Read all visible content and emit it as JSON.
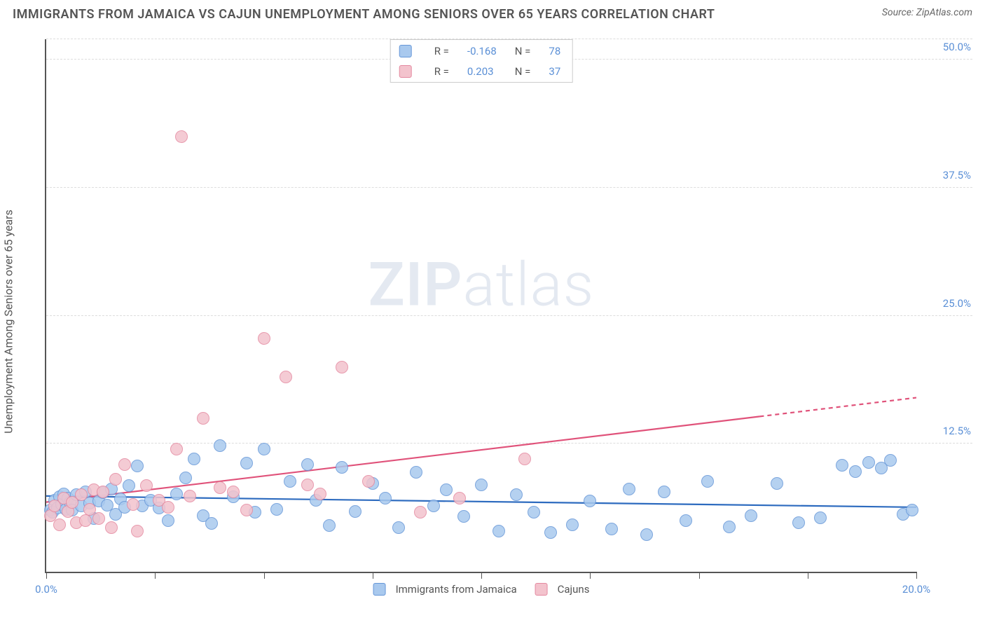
{
  "header": {
    "title": "IMMIGRANTS FROM JAMAICA VS CAJUN UNEMPLOYMENT AMONG SENIORS OVER 65 YEARS CORRELATION CHART",
    "source_prefix": "Source: ",
    "source_name": "ZipAtlas.com"
  },
  "watermark": {
    "bold": "ZIP",
    "light": "atlas"
  },
  "chart": {
    "type": "scatter",
    "y_axis_label": "Unemployment Among Seniors over 65 years",
    "xlim": [
      0,
      20
    ],
    "ylim": [
      0,
      52
    ],
    "x_ticks": [
      0,
      2.5,
      5,
      7.5,
      10,
      12.5,
      15,
      17.5,
      20
    ],
    "x_tick_labels": {
      "0": "0.0%",
      "20": "20.0%"
    },
    "y_ticks": [
      12.5,
      25.0,
      37.5,
      50.0
    ],
    "y_tick_labels": [
      "12.5%",
      "25.0%",
      "37.5%",
      "50.0%"
    ],
    "grid_color": "#dddddd",
    "axis_color": "#555555",
    "background_color": "#ffffff",
    "series": [
      {
        "id": "jamaica",
        "label": "Immigrants from Jamaica",
        "fill": "#a9c9ee",
        "stroke": "#6697d8",
        "trend_color": "#2d6bbf",
        "r_value": "-0.168",
        "n_value": "78",
        "marker_radius": 9,
        "trend": {
          "y_at_xmin": 7.4,
          "y_at_xmax": 6.3,
          "dash_from_x": 20
        },
        "points": [
          [
            0.1,
            6.0
          ],
          [
            0.15,
            5.8
          ],
          [
            0.2,
            7.0
          ],
          [
            0.25,
            6.2
          ],
          [
            0.3,
            7.3
          ],
          [
            0.35,
            6.6
          ],
          [
            0.4,
            7.6
          ],
          [
            0.45,
            6.1
          ],
          [
            0.5,
            7.2
          ],
          [
            0.55,
            6.8
          ],
          [
            0.6,
            6.0
          ],
          [
            0.7,
            7.5
          ],
          [
            0.8,
            6.4
          ],
          [
            0.9,
            7.8
          ],
          [
            1.0,
            6.7
          ],
          [
            1.1,
            5.2
          ],
          [
            1.2,
            6.9
          ],
          [
            1.3,
            7.7
          ],
          [
            1.4,
            6.5
          ],
          [
            1.5,
            8.1
          ],
          [
            1.6,
            5.6
          ],
          [
            1.7,
            7.1
          ],
          [
            1.8,
            6.3
          ],
          [
            1.9,
            8.4
          ],
          [
            2.1,
            10.3
          ],
          [
            2.2,
            6.4
          ],
          [
            2.4,
            7.0
          ],
          [
            2.6,
            6.2
          ],
          [
            2.8,
            5.0
          ],
          [
            3.0,
            7.6
          ],
          [
            3.2,
            9.2
          ],
          [
            3.4,
            11.0
          ],
          [
            3.6,
            5.5
          ],
          [
            3.8,
            4.7
          ],
          [
            4.0,
            12.3
          ],
          [
            4.3,
            7.3
          ],
          [
            4.6,
            10.6
          ],
          [
            4.8,
            5.8
          ],
          [
            5.0,
            12.0
          ],
          [
            5.3,
            6.1
          ],
          [
            5.6,
            8.8
          ],
          [
            6.0,
            10.5
          ],
          [
            6.2,
            7.0
          ],
          [
            6.5,
            4.5
          ],
          [
            6.8,
            10.2
          ],
          [
            7.1,
            5.9
          ],
          [
            7.5,
            8.6
          ],
          [
            7.8,
            7.2
          ],
          [
            8.1,
            4.3
          ],
          [
            8.5,
            9.7
          ],
          [
            8.9,
            6.4
          ],
          [
            9.2,
            8.0
          ],
          [
            9.6,
            5.4
          ],
          [
            10.0,
            8.5
          ],
          [
            10.4,
            4.0
          ],
          [
            10.8,
            7.5
          ],
          [
            11.2,
            5.8
          ],
          [
            11.6,
            3.8
          ],
          [
            12.1,
            4.6
          ],
          [
            12.5,
            6.9
          ],
          [
            13.0,
            4.2
          ],
          [
            13.4,
            8.1
          ],
          [
            13.8,
            3.6
          ],
          [
            14.2,
            7.8
          ],
          [
            14.7,
            5.0
          ],
          [
            15.2,
            8.8
          ],
          [
            15.7,
            4.4
          ],
          [
            16.2,
            5.5
          ],
          [
            16.8,
            8.6
          ],
          [
            17.3,
            4.8
          ],
          [
            17.8,
            5.3
          ],
          [
            18.3,
            10.4
          ],
          [
            18.6,
            9.8
          ],
          [
            18.9,
            10.7
          ],
          [
            19.2,
            10.1
          ],
          [
            19.4,
            10.9
          ],
          [
            19.7,
            5.6
          ],
          [
            19.9,
            6.0
          ]
        ]
      },
      {
        "id": "cajuns",
        "label": "Cajuns",
        "fill": "#f3c3cd",
        "stroke": "#e489a0",
        "trend_color": "#e0527a",
        "r_value": "0.203",
        "n_value": "37",
        "marker_radius": 9,
        "trend": {
          "y_at_xmin": 6.8,
          "y_at_xmax": 17.0,
          "dash_from_x": 16.4
        },
        "points": [
          [
            0.1,
            5.5
          ],
          [
            0.2,
            6.4
          ],
          [
            0.3,
            4.6
          ],
          [
            0.4,
            7.2
          ],
          [
            0.5,
            5.9
          ],
          [
            0.6,
            6.8
          ],
          [
            0.7,
            4.8
          ],
          [
            0.8,
            7.5
          ],
          [
            0.9,
            5.0
          ],
          [
            1.0,
            6.1
          ],
          [
            1.1,
            8.0
          ],
          [
            1.2,
            5.2
          ],
          [
            1.3,
            7.8
          ],
          [
            1.5,
            4.3
          ],
          [
            1.6,
            9.0
          ],
          [
            1.8,
            10.5
          ],
          [
            2.0,
            6.6
          ],
          [
            2.1,
            4.0
          ],
          [
            2.3,
            8.4
          ],
          [
            2.6,
            7.0
          ],
          [
            2.8,
            6.3
          ],
          [
            3.0,
            12.0
          ],
          [
            3.1,
            42.5
          ],
          [
            3.3,
            7.4
          ],
          [
            3.6,
            15.0
          ],
          [
            4.0,
            8.2
          ],
          [
            4.3,
            7.8
          ],
          [
            4.6,
            6.0
          ],
          [
            5.0,
            22.8
          ],
          [
            5.5,
            19.0
          ],
          [
            6.0,
            8.5
          ],
          [
            6.3,
            7.6
          ],
          [
            6.8,
            20.0
          ],
          [
            7.4,
            8.8
          ],
          [
            8.6,
            5.8
          ],
          [
            9.5,
            7.2
          ],
          [
            11.0,
            11.0
          ]
        ]
      }
    ],
    "legend_top": {
      "r_label": "R =",
      "n_label": "N =",
      "value_color": "#5a8fd6",
      "label_color": "#555555"
    }
  }
}
